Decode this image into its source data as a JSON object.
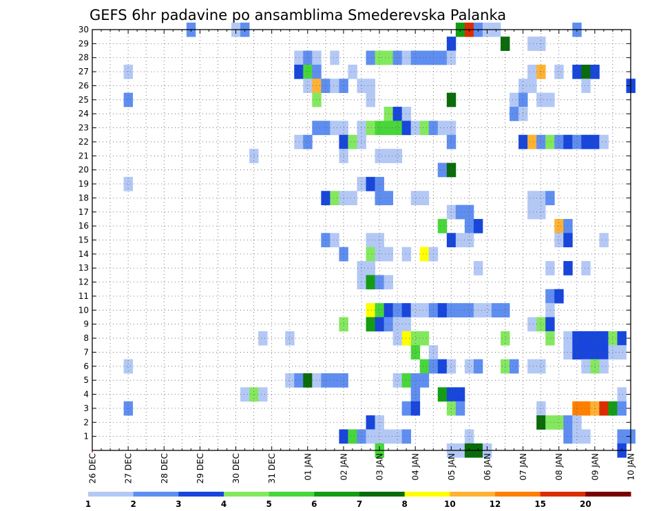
{
  "chart_data": {
    "type": "heatmap",
    "title": "GEFS 6hr padavine po ansamblima Smederevska Palanka",
    "xlabel": "",
    "ylabel": "",
    "x_tick_labels": [
      "26 DEC",
      "27 DEC",
      "28 DEC",
      "29 DEC",
      "30 DEC",
      "31 DEC",
      "01 JAN",
      "02 JAN",
      "03 JAN",
      "04 JAN",
      "05 JAN",
      "06 JAN",
      "07 JAN",
      "08 JAN",
      "09 JAN",
      "10 JAN"
    ],
    "x_steps_per_day": 4,
    "x_range_steps": [
      0,
      60
    ],
    "y_tick_labels": [
      "1",
      "2",
      "3",
      "4",
      "5",
      "6",
      "7",
      "8",
      "9",
      "10",
      "11",
      "12",
      "13",
      "14",
      "15",
      "16",
      "17",
      "18",
      "19",
      "20",
      "21",
      "22",
      "23",
      "24",
      "25",
      "26",
      "27",
      "28",
      "29",
      "30"
    ],
    "y_range": [
      0,
      30
    ],
    "grid": true,
    "legend": {
      "placement": "bottom",
      "levels": [
        1,
        2,
        3,
        4,
        5,
        6,
        7,
        8,
        10,
        12,
        15,
        20
      ],
      "level_labels": [
        "1",
        "2",
        "3",
        "4",
        "5",
        "6",
        "7",
        "8",
        "10",
        "12",
        "15",
        "20"
      ],
      "colors": [
        "#b3c8f5",
        "#5f8ef0",
        "#1846dc",
        "#84e85f",
        "#48d63a",
        "#139d13",
        "#0a6b0a",
        "#ffff00",
        "#ffb232",
        "#ff7f00",
        "#dc2d00",
        "#780000"
      ]
    },
    "cell_colors": {
      "1": "#b3c8f5",
      "2": "#5f8ef0",
      "3": "#1846dc",
      "4": "#84e85f",
      "5": "#48d63a",
      "6": "#139d13",
      "7": "#0a6b0a",
      "8": "#ffff00",
      "9": "#ffb232",
      "10": "#ff7f00",
      "11": "#dc2d00",
      "12": "#780000"
    },
    "cells": [
      {
        "member": 30,
        "x": [
          [
            11,
            2
          ],
          [
            16,
            1
          ],
          [
            17,
            2
          ],
          [
            41,
            6
          ],
          [
            42,
            11
          ],
          [
            43,
            2
          ],
          [
            44,
            1
          ],
          [
            45,
            1
          ],
          [
            54,
            2
          ]
        ]
      },
      {
        "member": 29,
        "x": [
          [
            40,
            3
          ],
          [
            46,
            7
          ],
          [
            49,
            1
          ],
          [
            50,
            1
          ]
        ]
      },
      {
        "member": 28,
        "x": [
          [
            23,
            1
          ],
          [
            24,
            2
          ],
          [
            25,
            1
          ],
          [
            27,
            1
          ],
          [
            31,
            2
          ],
          [
            32,
            4
          ],
          [
            33,
            4
          ],
          [
            34,
            2
          ],
          [
            35,
            1
          ],
          [
            36,
            2
          ],
          [
            37,
            2
          ],
          [
            38,
            2
          ],
          [
            39,
            2
          ],
          [
            40,
            1
          ]
        ]
      },
      {
        "member": 27,
        "x": [
          [
            4,
            1
          ],
          [
            23,
            3
          ],
          [
            24,
            5
          ],
          [
            25,
            2
          ],
          [
            29,
            1
          ],
          [
            49,
            1
          ],
          [
            50,
            9
          ],
          [
            52,
            1
          ],
          [
            54,
            3
          ],
          [
            55,
            7
          ],
          [
            56,
            3
          ]
        ]
      },
      {
        "member": 26,
        "x": [
          [
            24,
            1
          ],
          [
            25,
            9
          ],
          [
            26,
            2
          ],
          [
            27,
            1
          ],
          [
            28,
            2
          ],
          [
            30,
            1
          ],
          [
            31,
            1
          ],
          [
            48,
            1
          ],
          [
            49,
            1
          ],
          [
            55,
            1
          ],
          [
            60,
            3
          ]
        ]
      },
      {
        "member": 25,
        "x": [
          [
            4,
            2
          ],
          [
            25,
            4
          ],
          [
            31,
            1
          ],
          [
            40,
            7
          ],
          [
            47,
            1
          ],
          [
            48,
            2
          ],
          [
            50,
            1
          ],
          [
            51,
            1
          ]
        ]
      },
      {
        "member": 24,
        "x": [
          [
            33,
            4
          ],
          [
            34,
            3
          ],
          [
            35,
            1
          ],
          [
            47,
            2
          ],
          [
            48,
            1
          ]
        ]
      },
      {
        "member": 23,
        "x": [
          [
            25,
            2
          ],
          [
            26,
            2
          ],
          [
            27,
            1
          ],
          [
            28,
            1
          ],
          [
            30,
            1
          ],
          [
            31,
            4
          ],
          [
            32,
            5
          ],
          [
            33,
            5
          ],
          [
            34,
            5
          ],
          [
            35,
            3
          ],
          [
            36,
            1
          ],
          [
            37,
            4
          ],
          [
            38,
            2
          ],
          [
            39,
            1
          ],
          [
            40,
            1
          ]
        ]
      },
      {
        "member": 22,
        "x": [
          [
            23,
            1
          ],
          [
            24,
            2
          ],
          [
            28,
            3
          ],
          [
            29,
            4
          ],
          [
            30,
            1
          ],
          [
            40,
            2
          ],
          [
            48,
            3
          ],
          [
            49,
            9
          ],
          [
            50,
            2
          ],
          [
            51,
            4
          ],
          [
            52,
            2
          ],
          [
            53,
            3
          ],
          [
            54,
            2
          ],
          [
            55,
            3
          ],
          [
            56,
            3
          ],
          [
            57,
            1
          ]
        ]
      },
      {
        "member": 21,
        "x": [
          [
            18,
            1
          ],
          [
            28,
            1
          ],
          [
            32,
            1
          ],
          [
            33,
            1
          ],
          [
            34,
            1
          ]
        ]
      },
      {
        "member": 20,
        "x": [
          [
            39,
            2
          ],
          [
            40,
            7
          ]
        ]
      },
      {
        "member": 19,
        "x": [
          [
            4,
            1
          ],
          [
            30,
            1
          ],
          [
            31,
            3
          ],
          [
            32,
            2
          ]
        ]
      },
      {
        "member": 18,
        "x": [
          [
            26,
            3
          ],
          [
            27,
            4
          ],
          [
            28,
            1
          ],
          [
            29,
            1
          ],
          [
            32,
            2
          ],
          [
            33,
            2
          ],
          [
            36,
            1
          ],
          [
            37,
            1
          ],
          [
            49,
            1
          ],
          [
            50,
            1
          ],
          [
            51,
            2
          ]
        ]
      },
      {
        "member": 17,
        "x": [
          [
            40,
            1
          ],
          [
            41,
            2
          ],
          [
            42,
            2
          ],
          [
            49,
            1
          ],
          [
            50,
            1
          ]
        ]
      },
      {
        "member": 16,
        "x": [
          [
            39,
            5
          ],
          [
            42,
            2
          ],
          [
            43,
            3
          ],
          [
            52,
            9
          ],
          [
            53,
            2
          ]
        ]
      },
      {
        "member": 15,
        "x": [
          [
            26,
            2
          ],
          [
            27,
            1
          ],
          [
            31,
            1
          ],
          [
            32,
            1
          ],
          [
            40,
            3
          ],
          [
            41,
            1
          ],
          [
            42,
            1
          ],
          [
            52,
            1
          ],
          [
            53,
            3
          ],
          [
            57,
            1
          ]
        ]
      },
      {
        "member": 14,
        "x": [
          [
            28,
            2
          ],
          [
            31,
            4
          ],
          [
            32,
            1
          ],
          [
            33,
            1
          ],
          [
            35,
            1
          ],
          [
            37,
            8
          ],
          [
            38,
            1
          ]
        ]
      },
      {
        "member": 13,
        "x": [
          [
            30,
            1
          ],
          [
            31,
            1
          ],
          [
            43,
            1
          ],
          [
            51,
            1
          ],
          [
            53,
            3
          ],
          [
            55,
            1
          ]
        ]
      },
      {
        "member": 12,
        "x": [
          [
            30,
            1
          ],
          [
            31,
            6
          ],
          [
            32,
            2
          ],
          [
            33,
            1
          ]
        ]
      },
      {
        "member": 11,
        "x": [
          [
            51,
            2
          ],
          [
            52,
            3
          ]
        ]
      },
      {
        "member": 10,
        "x": [
          [
            31,
            8
          ],
          [
            32,
            5
          ],
          [
            33,
            3
          ],
          [
            34,
            2
          ],
          [
            35,
            3
          ],
          [
            36,
            1
          ],
          [
            37,
            1
          ],
          [
            38,
            2
          ],
          [
            39,
            3
          ],
          [
            40,
            2
          ],
          [
            41,
            2
          ],
          [
            42,
            2
          ],
          [
            43,
            1
          ],
          [
            44,
            1
          ],
          [
            45,
            2
          ],
          [
            46,
            2
          ],
          [
            51,
            1
          ]
        ]
      },
      {
        "member": 9,
        "x": [
          [
            28,
            4
          ],
          [
            31,
            6
          ],
          [
            32,
            3
          ],
          [
            33,
            2
          ],
          [
            34,
            1
          ],
          [
            35,
            1
          ],
          [
            49,
            1
          ],
          [
            50,
            4
          ],
          [
            51,
            3
          ]
        ]
      },
      {
        "member": 8,
        "x": [
          [
            19,
            1
          ],
          [
            22,
            1
          ],
          [
            34,
            1
          ],
          [
            35,
            8
          ],
          [
            36,
            4
          ],
          [
            37,
            4
          ],
          [
            46,
            4
          ],
          [
            51,
            4
          ],
          [
            53,
            1
          ],
          [
            54,
            3
          ],
          [
            55,
            3
          ],
          [
            56,
            3
          ],
          [
            57,
            3
          ],
          [
            58,
            4
          ],
          [
            59,
            3
          ]
        ]
      },
      {
        "member": 7,
        "x": [
          [
            36,
            5
          ],
          [
            38,
            1
          ],
          [
            53,
            1
          ],
          [
            54,
            3
          ],
          [
            55,
            3
          ],
          [
            56,
            3
          ],
          [
            57,
            3
          ],
          [
            58,
            1
          ],
          [
            59,
            1
          ]
        ]
      },
      {
        "member": 6,
        "x": [
          [
            4,
            1
          ],
          [
            37,
            5
          ],
          [
            38,
            2
          ],
          [
            39,
            3
          ],
          [
            40,
            1
          ],
          [
            42,
            1
          ],
          [
            43,
            2
          ],
          [
            46,
            4
          ],
          [
            47,
            2
          ],
          [
            49,
            1
          ],
          [
            50,
            1
          ],
          [
            55,
            1
          ],
          [
            56,
            4
          ],
          [
            57,
            1
          ]
        ]
      },
      {
        "member": 5,
        "x": [
          [
            22,
            1
          ],
          [
            23,
            2
          ],
          [
            24,
            7
          ],
          [
            25,
            1
          ],
          [
            26,
            2
          ],
          [
            27,
            2
          ],
          [
            28,
            2
          ],
          [
            34,
            1
          ],
          [
            35,
            5
          ],
          [
            36,
            2
          ],
          [
            37,
            2
          ]
        ]
      },
      {
        "member": 4,
        "x": [
          [
            17,
            1
          ],
          [
            18,
            4
          ],
          [
            19,
            1
          ],
          [
            36,
            2
          ],
          [
            39,
            6
          ],
          [
            40,
            3
          ],
          [
            41,
            3
          ],
          [
            59,
            1
          ]
        ]
      },
      {
        "member": 3,
        "x": [
          [
            4,
            2
          ],
          [
            35,
            2
          ],
          [
            36,
            3
          ],
          [
            40,
            4
          ],
          [
            41,
            2
          ],
          [
            50,
            1
          ],
          [
            54,
            10
          ],
          [
            55,
            10
          ],
          [
            56,
            9
          ],
          [
            57,
            11
          ],
          [
            58,
            6
          ],
          [
            59,
            2
          ]
        ]
      },
      {
        "member": 2,
        "x": [
          [
            31,
            3
          ],
          [
            32,
            1
          ],
          [
            50,
            7
          ],
          [
            51,
            4
          ],
          [
            52,
            4
          ],
          [
            53,
            2
          ],
          [
            54,
            1
          ]
        ]
      },
      {
        "member": 1,
        "x": [
          [
            28,
            3
          ],
          [
            29,
            5
          ],
          [
            30,
            2
          ],
          [
            31,
            1
          ],
          [
            32,
            1
          ],
          [
            33,
            1
          ],
          [
            34,
            1
          ],
          [
            35,
            2
          ],
          [
            42,
            1
          ],
          [
            53,
            2
          ],
          [
            54,
            1
          ],
          [
            55,
            1
          ],
          [
            59,
            2
          ],
          [
            60,
            2
          ]
        ]
      },
      {
        "member": 0,
        "x": [
          [
            32,
            5
          ],
          [
            40,
            1
          ],
          [
            41,
            1
          ],
          [
            42,
            7
          ],
          [
            43,
            7
          ],
          [
            44,
            1
          ],
          [
            59,
            3
          ]
        ]
      }
    ]
  }
}
